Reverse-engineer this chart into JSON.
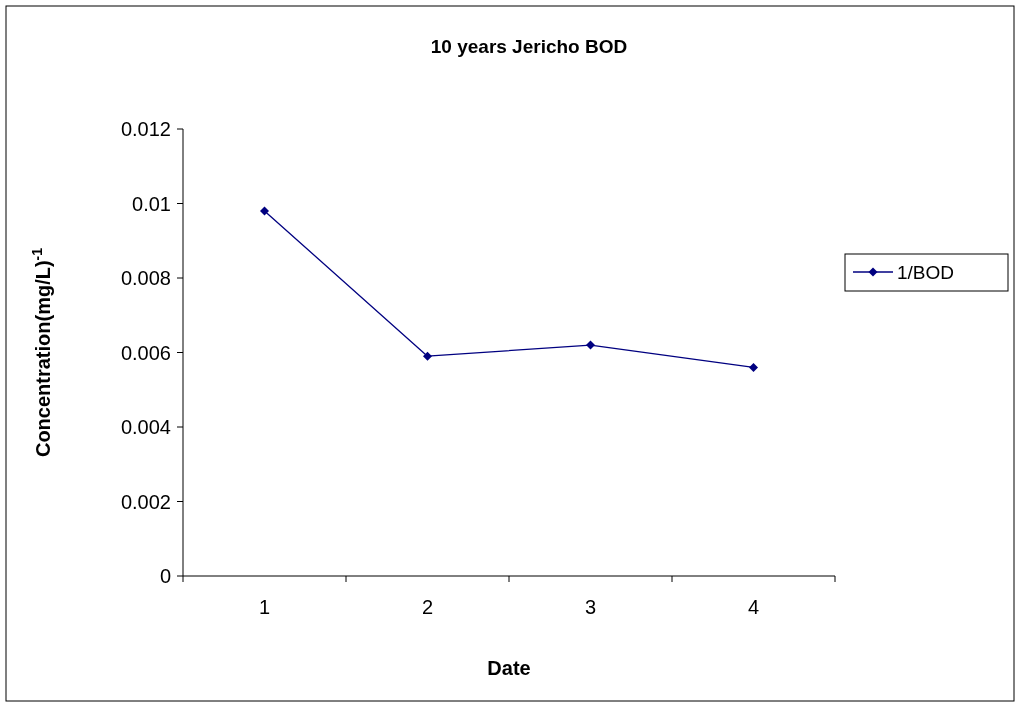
{
  "chart_data": {
    "type": "line",
    "title": "10 years Jericho BOD",
    "xlabel": "Date",
    "ylabel": "Concentration(mg/L)$^{-1}$",
    "categories": [
      "1",
      "2",
      "3",
      "4"
    ],
    "series": [
      {
        "name": "1/BOD",
        "color": "#000080",
        "values": [
          0.0098,
          0.0059,
          0.0062,
          0.0056
        ]
      }
    ],
    "ylim": [
      0,
      0.012
    ],
    "yticks": [
      0,
      0.002,
      0.004,
      0.006,
      0.008,
      0.01,
      0.012
    ],
    "grid": false,
    "legend": "right",
    "marker": "diamond",
    "line_style": "solid"
  }
}
